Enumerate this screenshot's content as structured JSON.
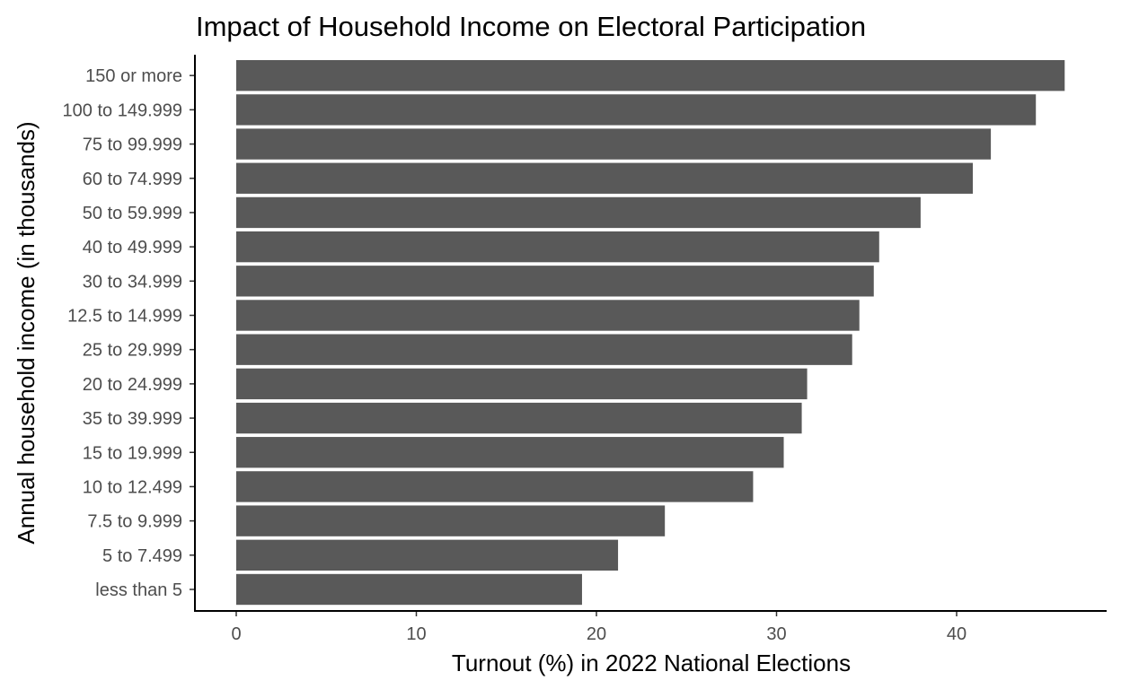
{
  "chart_data": {
    "type": "bar",
    "orientation": "horizontal",
    "title": "Impact of Household Income on Electoral Participation",
    "xlabel": "Turnout (%) in 2022 National Elections",
    "ylabel": "Annual household income (in thousands)",
    "categories": [
      "150 or more",
      "100 to 149.999",
      "75 to 99.999",
      "60 to 74.999",
      "50 to 59.999",
      "40 to 49.999",
      "30 to 34.999",
      "12.5 to 14.999",
      "25 to 29.999",
      "20 to 24.999",
      "35 to 39.999",
      "15 to 19.999",
      "10 to 12.499",
      "7.5 to 9.999",
      "5 to 7.499",
      "less than 5"
    ],
    "values": [
      46.0,
      44.4,
      41.9,
      40.9,
      38.0,
      35.7,
      35.4,
      34.6,
      34.2,
      31.7,
      31.4,
      30.4,
      28.7,
      23.8,
      21.2,
      19.2
    ],
    "xlim": [
      0,
      46
    ],
    "xticks": [
      0,
      10,
      20,
      30,
      40
    ],
    "grid": false,
    "legend": "none",
    "bar_color": "#595959"
  }
}
